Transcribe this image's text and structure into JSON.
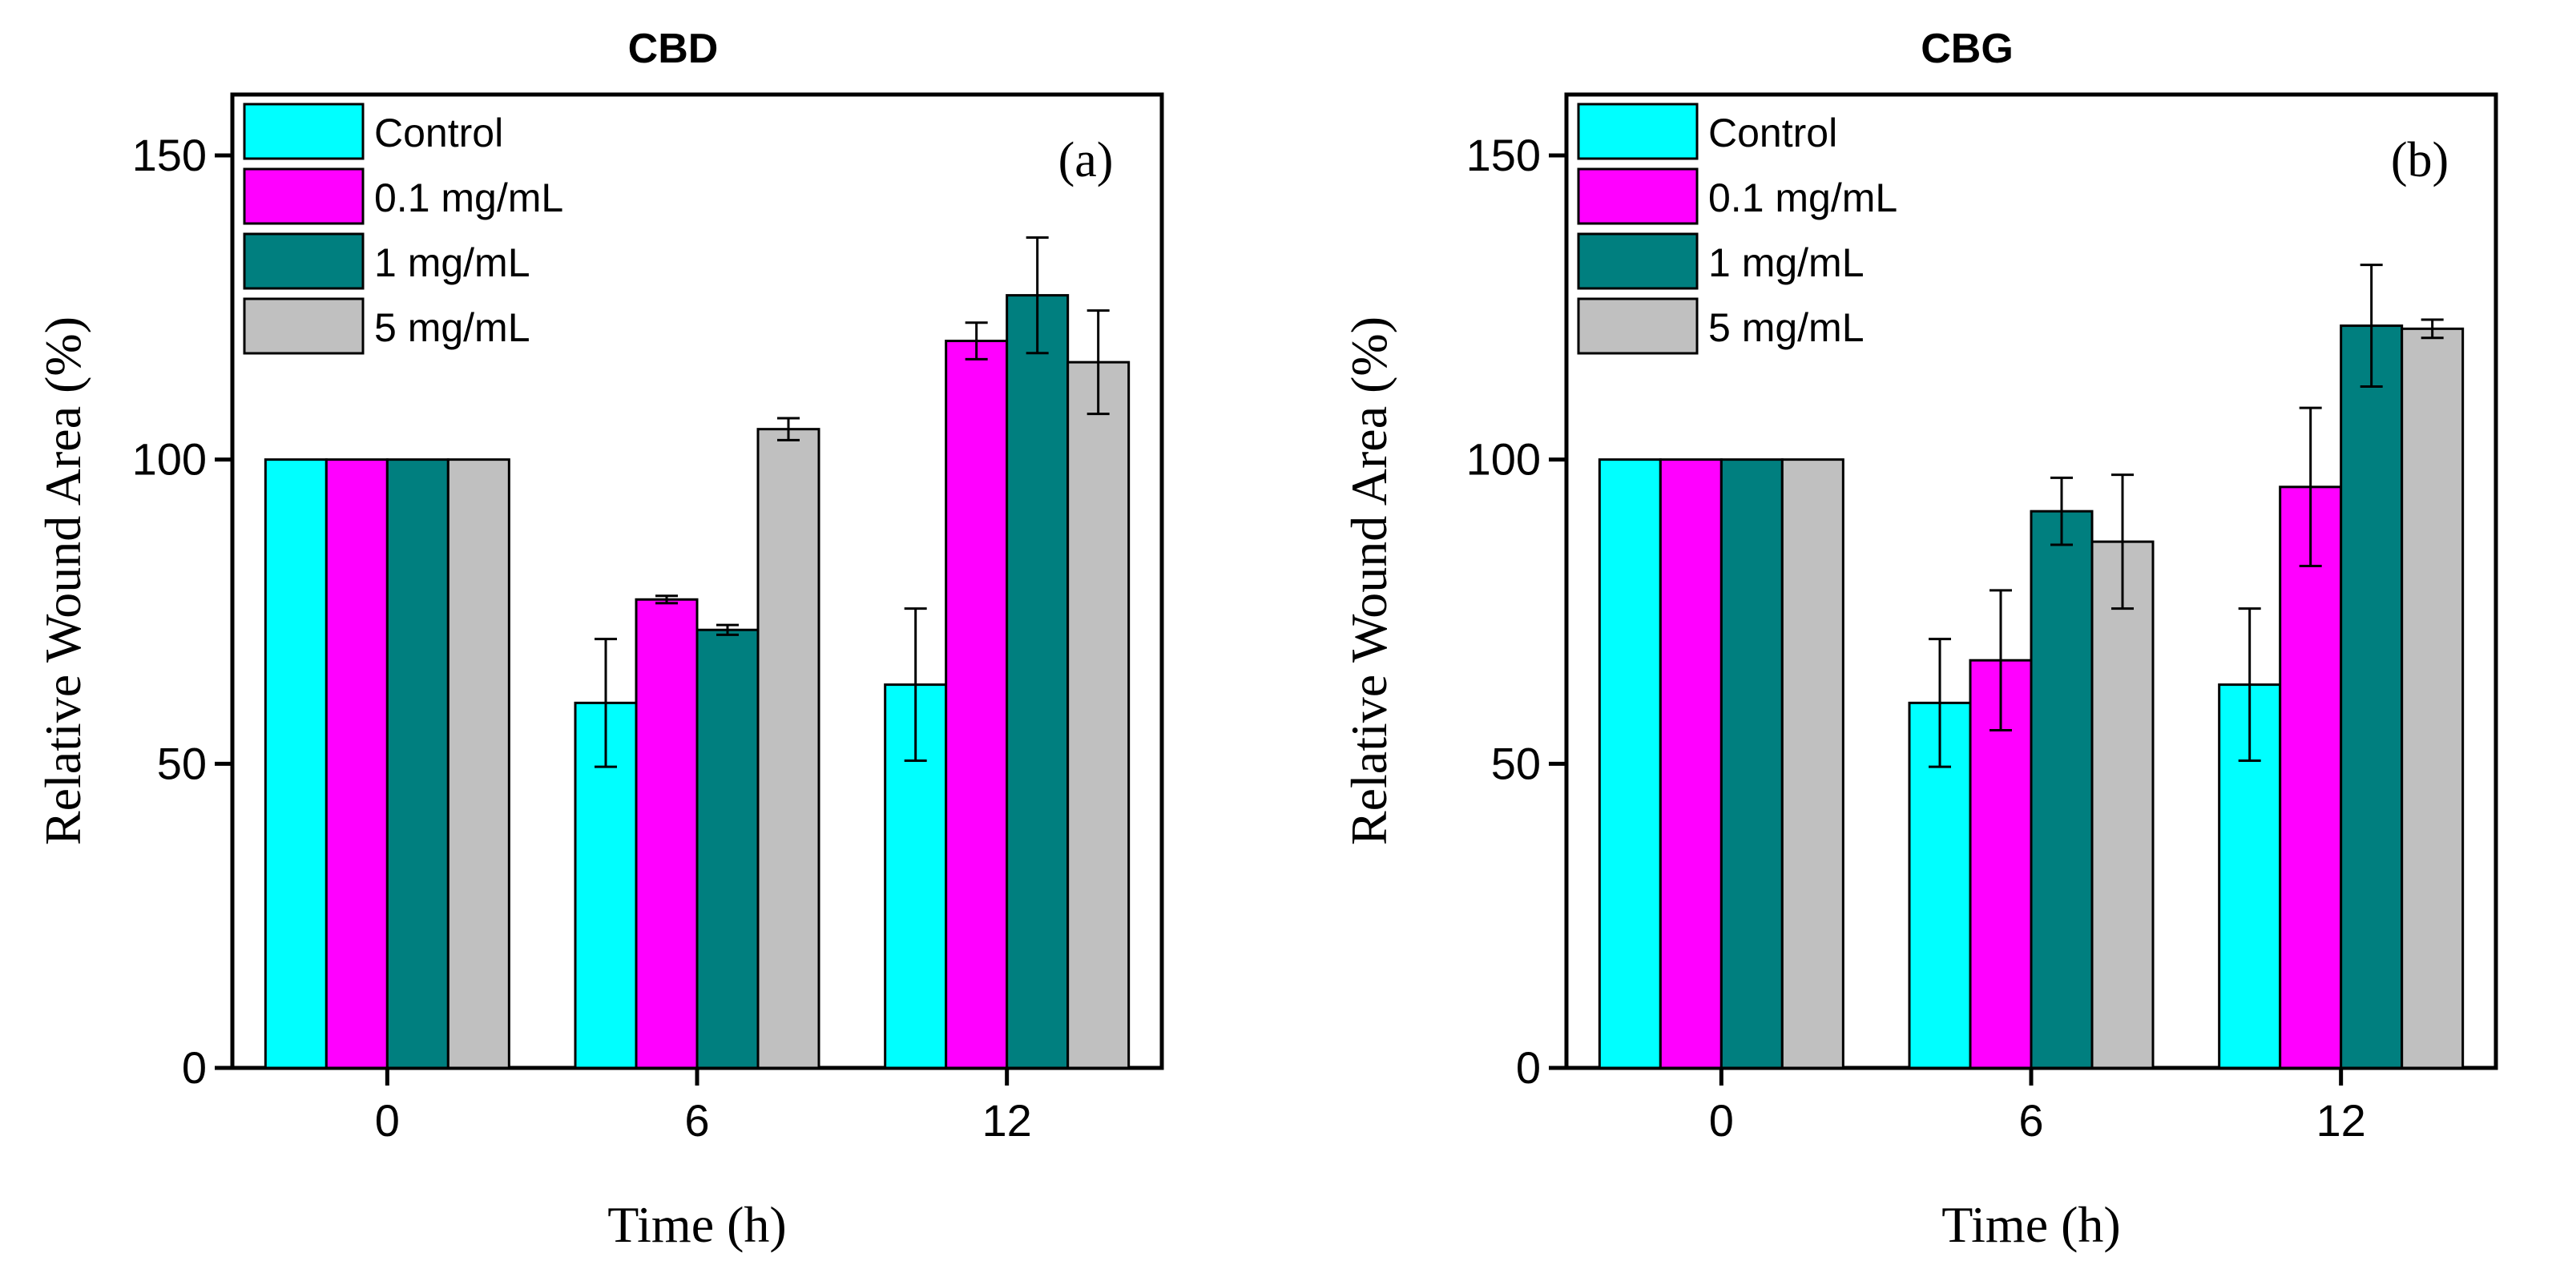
{
  "chart_data": [
    {
      "type": "bar",
      "title": "CBD",
      "panel_label": "(a)",
      "xlabel": "Time (h)",
      "ylabel": "Relative Wound Area (%)",
      "ylim": [
        0,
        160
      ],
      "yticks": [
        0,
        50,
        100,
        150
      ],
      "categories": [
        "0",
        "6",
        "12"
      ],
      "legend_position": "top-left",
      "series": [
        {
          "name": "Control",
          "color": "#00ffff",
          "values": [
            100,
            60,
            63
          ],
          "errors": [
            0,
            10.5,
            12.5
          ]
        },
        {
          "name": "0.1 mg/mL",
          "color": "#ff00ff",
          "values": [
            100,
            77,
            119.5
          ],
          "errors": [
            0,
            0.6,
            3
          ]
        },
        {
          "name": "1 mg/mL",
          "color": "#007f7f",
          "values": [
            100,
            72,
            127
          ],
          "errors": [
            0,
            0.8,
            9.5
          ]
        },
        {
          "name": "5 mg/mL",
          "color": "#c0c0c0",
          "values": [
            100,
            105,
            116
          ],
          "errors": [
            0,
            1.8,
            8.5
          ]
        }
      ]
    },
    {
      "type": "bar",
      "title": "CBG",
      "panel_label": "(b)",
      "xlabel": "Time (h)",
      "ylabel": "Relative Wound Area (%)",
      "ylim": [
        0,
        160
      ],
      "yticks": [
        0,
        50,
        100,
        150
      ],
      "categories": [
        "0",
        "6",
        "12"
      ],
      "legend_position": "top-left",
      "series": [
        {
          "name": "Control",
          "color": "#00ffff",
          "values": [
            100,
            60,
            63
          ],
          "errors": [
            0,
            10.5,
            12.5
          ]
        },
        {
          "name": "0.1 mg/mL",
          "color": "#ff00ff",
          "values": [
            100,
            67,
            95.5
          ],
          "errors": [
            0,
            11.5,
            13
          ]
        },
        {
          "name": "1 mg/mL",
          "color": "#007f7f",
          "values": [
            100,
            91.5,
            122
          ],
          "errors": [
            0,
            5.5,
            10
          ]
        },
        {
          "name": "5 mg/mL",
          "color": "#c0c0c0",
          "values": [
            100,
            86.5,
            121.5
          ],
          "errors": [
            0,
            11,
            1.5
          ]
        }
      ]
    }
  ]
}
